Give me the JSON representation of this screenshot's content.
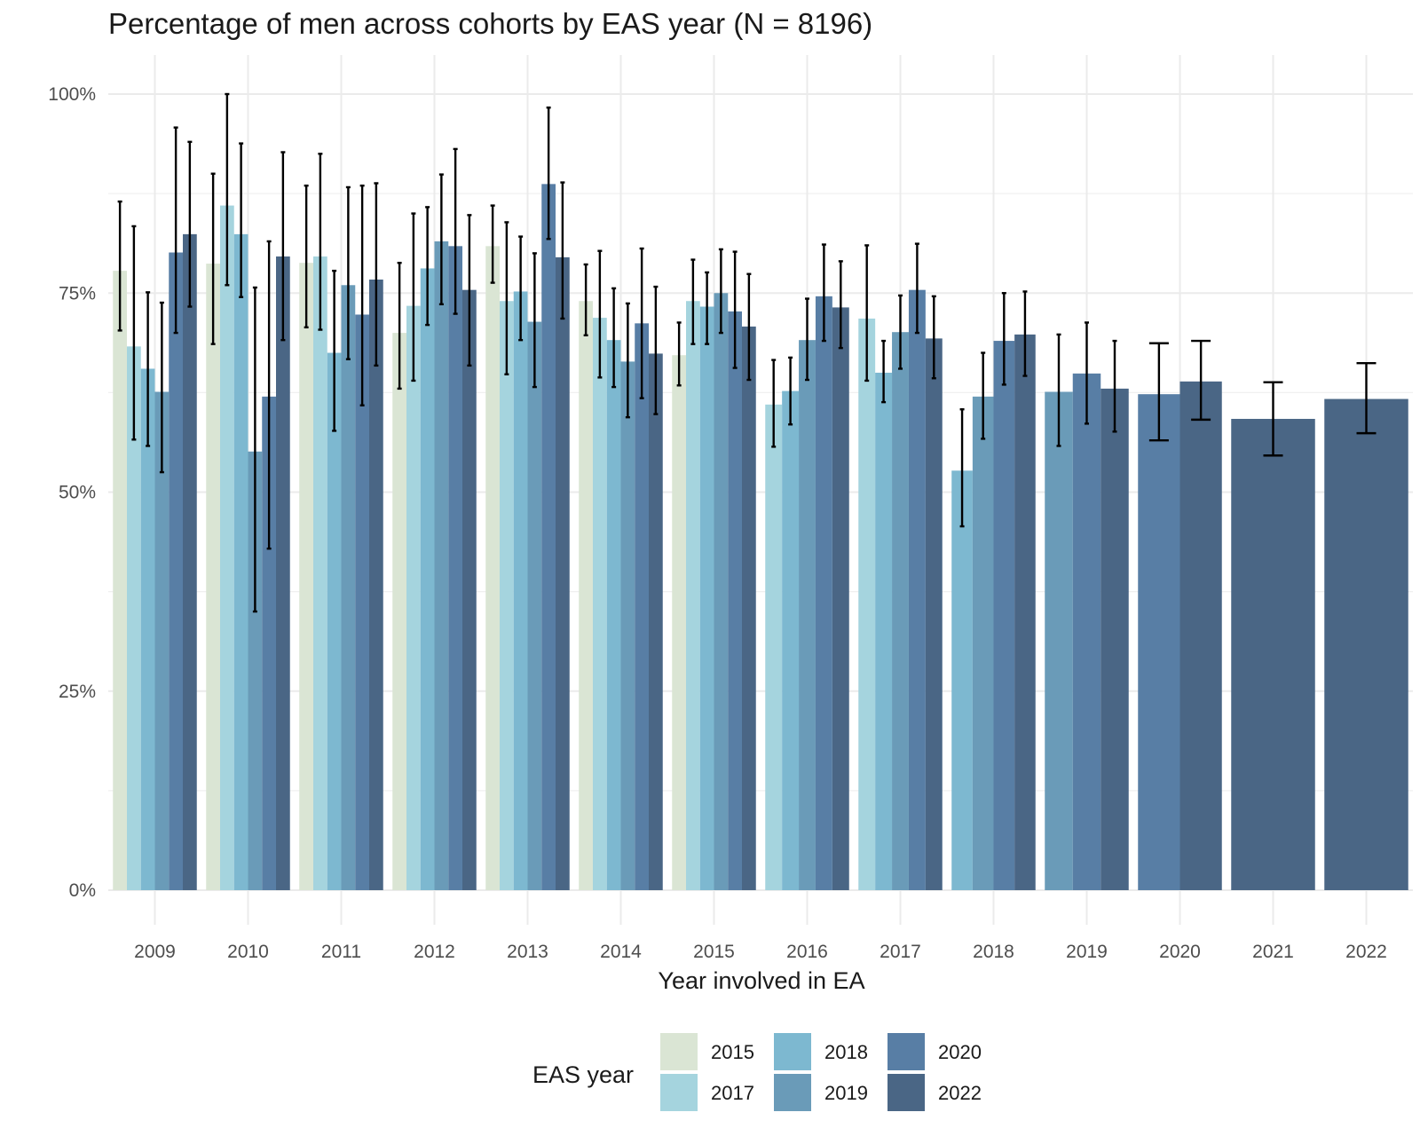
{
  "chart_data": {
    "type": "bar",
    "title": "Percentage of men across cohorts by EAS year (N = 8196)",
    "xlabel": "Year involved in EA",
    "ylabel": "",
    "ylim": [
      -0.035,
      1.01
    ],
    "yticks": [
      0,
      0.25,
      0.5,
      0.75,
      1.0
    ],
    "ytick_labels": [
      "0%",
      "25%",
      "50%",
      "75%",
      "100%"
    ],
    "grid": true,
    "legend": {
      "title": "EAS year",
      "position": "bottom"
    },
    "series_colors": {
      "2015": "#dae5d4",
      "2017": "#a5d4de",
      "2018": "#7db8d0",
      "2019": "#6a9bb8",
      "2020": "#587ea5",
      "2022": "#4a6685"
    },
    "legend_order": [
      "2015",
      "2017",
      "2018",
      "2019",
      "2020",
      "2022"
    ],
    "categories": [
      "2009",
      "2010",
      "2011",
      "2012",
      "2013",
      "2014",
      "2015",
      "2016",
      "2017",
      "2018",
      "2019",
      "2020",
      "2021",
      "2022"
    ],
    "groups": [
      {
        "category": "2009",
        "bars": [
          {
            "eas": "2015",
            "value": 0.778,
            "lo": 0.703,
            "hi": 0.865
          },
          {
            "eas": "2017",
            "value": 0.683,
            "lo": 0.566,
            "hi": 0.834
          },
          {
            "eas": "2018",
            "value": 0.655,
            "lo": 0.558,
            "hi": 0.751
          },
          {
            "eas": "2019",
            "value": 0.626,
            "lo": 0.525,
            "hi": 0.738
          },
          {
            "eas": "2020",
            "value": 0.801,
            "lo": 0.7,
            "hi": 0.958
          },
          {
            "eas": "2022",
            "value": 0.824,
            "lo": 0.733,
            "hi": 0.94
          }
        ]
      },
      {
        "category": "2010",
        "bars": [
          {
            "eas": "2015",
            "value": 0.787,
            "lo": 0.686,
            "hi": 0.9
          },
          {
            "eas": "2017",
            "value": 0.86,
            "lo": 0.76,
            "hi": 1.0
          },
          {
            "eas": "2018",
            "value": 0.824,
            "lo": 0.745,
            "hi": 0.938
          },
          {
            "eas": "2019",
            "value": 0.551,
            "lo": 0.35,
            "hi": 0.757
          },
          {
            "eas": "2020",
            "value": 0.62,
            "lo": 0.429,
            "hi": 0.815
          },
          {
            "eas": "2022",
            "value": 0.796,
            "lo": 0.691,
            "hi": 0.927
          }
        ]
      },
      {
        "category": "2011",
        "bars": [
          {
            "eas": "2015",
            "value": 0.788,
            "lo": 0.707,
            "hi": 0.885
          },
          {
            "eas": "2017",
            "value": 0.796,
            "lo": 0.704,
            "hi": 0.925
          },
          {
            "eas": "2018",
            "value": 0.675,
            "lo": 0.577,
            "hi": 0.778
          },
          {
            "eas": "2019",
            "value": 0.76,
            "lo": 0.667,
            "hi": 0.883
          },
          {
            "eas": "2020",
            "value": 0.723,
            "lo": 0.609,
            "hi": 0.885
          },
          {
            "eas": "2022",
            "value": 0.767,
            "lo": 0.659,
            "hi": 0.888
          }
        ]
      },
      {
        "category": "2012",
        "bars": [
          {
            "eas": "2015",
            "value": 0.7,
            "lo": 0.63,
            "hi": 0.788
          },
          {
            "eas": "2017",
            "value": 0.734,
            "lo": 0.64,
            "hi": 0.85
          },
          {
            "eas": "2018",
            "value": 0.781,
            "lo": 0.71,
            "hi": 0.858
          },
          {
            "eas": "2019",
            "value": 0.815,
            "lo": 0.736,
            "hi": 0.899
          },
          {
            "eas": "2020",
            "value": 0.809,
            "lo": 0.724,
            "hi": 0.931
          },
          {
            "eas": "2022",
            "value": 0.754,
            "lo": 0.659,
            "hi": 0.848
          }
        ]
      },
      {
        "category": "2013",
        "bars": [
          {
            "eas": "2015",
            "value": 0.809,
            "lo": 0.763,
            "hi": 0.86
          },
          {
            "eas": "2017",
            "value": 0.74,
            "lo": 0.648,
            "hi": 0.839
          },
          {
            "eas": "2018",
            "value": 0.752,
            "lo": 0.691,
            "hi": 0.821
          },
          {
            "eas": "2019",
            "value": 0.714,
            "lo": 0.632,
            "hi": 0.8
          },
          {
            "eas": "2020",
            "value": 0.887,
            "lo": 0.818,
            "hi": 0.983
          },
          {
            "eas": "2022",
            "value": 0.795,
            "lo": 0.718,
            "hi": 0.889
          }
        ]
      },
      {
        "category": "2014",
        "bars": [
          {
            "eas": "2015",
            "value": 0.74,
            "lo": 0.697,
            "hi": 0.786
          },
          {
            "eas": "2017",
            "value": 0.719,
            "lo": 0.644,
            "hi": 0.803
          },
          {
            "eas": "2018",
            "value": 0.691,
            "lo": 0.632,
            "hi": 0.756
          },
          {
            "eas": "2019",
            "value": 0.664,
            "lo": 0.594,
            "hi": 0.737
          },
          {
            "eas": "2020",
            "value": 0.712,
            "lo": 0.618,
            "hi": 0.806
          },
          {
            "eas": "2022",
            "value": 0.674,
            "lo": 0.598,
            "hi": 0.758
          }
        ]
      },
      {
        "category": "2015",
        "bars": [
          {
            "eas": "2015",
            "value": 0.672,
            "lo": 0.634,
            "hi": 0.713
          },
          {
            "eas": "2017",
            "value": 0.74,
            "lo": 0.686,
            "hi": 0.792
          },
          {
            "eas": "2018",
            "value": 0.733,
            "lo": 0.686,
            "hi": 0.776
          },
          {
            "eas": "2019",
            "value": 0.75,
            "lo": 0.7,
            "hi": 0.805
          },
          {
            "eas": "2020",
            "value": 0.727,
            "lo": 0.656,
            "hi": 0.802
          },
          {
            "eas": "2022",
            "value": 0.708,
            "lo": 0.641,
            "hi": 0.774
          }
        ]
      },
      {
        "category": "2016",
        "bars": [
          {
            "eas": "2017",
            "value": 0.61,
            "lo": 0.557,
            "hi": 0.666
          },
          {
            "eas": "2018",
            "value": 0.627,
            "lo": 0.585,
            "hi": 0.669
          },
          {
            "eas": "2019",
            "value": 0.691,
            "lo": 0.641,
            "hi": 0.743
          },
          {
            "eas": "2020",
            "value": 0.746,
            "lo": 0.69,
            "hi": 0.811
          },
          {
            "eas": "2022",
            "value": 0.732,
            "lo": 0.681,
            "hi": 0.79
          }
        ]
      },
      {
        "category": "2017",
        "bars": [
          {
            "eas": "2017",
            "value": 0.718,
            "lo": 0.64,
            "hi": 0.81
          },
          {
            "eas": "2018",
            "value": 0.65,
            "lo": 0.613,
            "hi": 0.69
          },
          {
            "eas": "2019",
            "value": 0.701,
            "lo": 0.655,
            "hi": 0.747
          },
          {
            "eas": "2020",
            "value": 0.754,
            "lo": 0.7,
            "hi": 0.812
          },
          {
            "eas": "2022",
            "value": 0.693,
            "lo": 0.643,
            "hi": 0.746
          }
        ]
      },
      {
        "category": "2018",
        "bars": [
          {
            "eas": "2018",
            "value": 0.527,
            "lo": 0.457,
            "hi": 0.604
          },
          {
            "eas": "2019",
            "value": 0.62,
            "lo": 0.567,
            "hi": 0.675
          },
          {
            "eas": "2020",
            "value": 0.69,
            "lo": 0.635,
            "hi": 0.75
          },
          {
            "eas": "2022",
            "value": 0.698,
            "lo": 0.646,
            "hi": 0.752
          }
        ]
      },
      {
        "category": "2019",
        "bars": [
          {
            "eas": "2019",
            "value": 0.626,
            "lo": 0.558,
            "hi": 0.698
          },
          {
            "eas": "2020",
            "value": 0.649,
            "lo": 0.586,
            "hi": 0.713
          },
          {
            "eas": "2022",
            "value": 0.63,
            "lo": 0.576,
            "hi": 0.69
          }
        ]
      },
      {
        "category": "2020",
        "bars": [
          {
            "eas": "2020",
            "value": 0.623,
            "lo": 0.565,
            "hi": 0.687
          },
          {
            "eas": "2022",
            "value": 0.639,
            "lo": 0.591,
            "hi": 0.69
          }
        ]
      },
      {
        "category": "2021",
        "bars": [
          {
            "eas": "2022",
            "value": 0.592,
            "lo": 0.546,
            "hi": 0.638
          }
        ]
      },
      {
        "category": "2022",
        "bars": [
          {
            "eas": "2022",
            "value": 0.617,
            "lo": 0.574,
            "hi": 0.662
          }
        ]
      }
    ]
  }
}
